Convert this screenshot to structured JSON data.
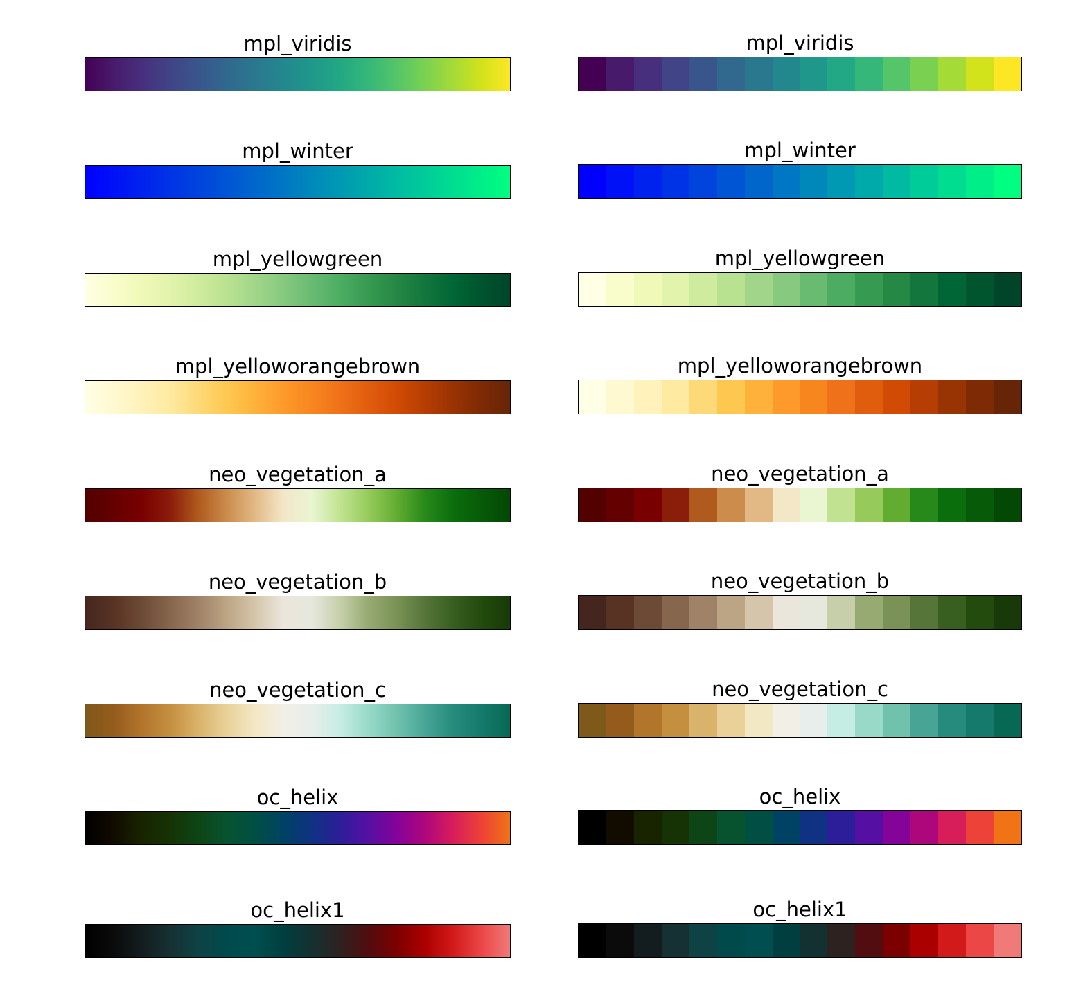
{
  "chart_data": {
    "type": "heatmap",
    "columns": [
      "continuous",
      "discrete"
    ],
    "colormaps": [
      {
        "name": "mpl_viridis",
        "discrete": [
          "#440154",
          "#481a6c",
          "#472f7d",
          "#414487",
          "#39568c",
          "#31688e",
          "#2a788e",
          "#23888e",
          "#1f988b",
          "#22a884",
          "#35b779",
          "#54c568",
          "#7ad151",
          "#a5db36",
          "#d2e21b",
          "#fde725"
        ]
      },
      {
        "name": "mpl_winter",
        "discrete": [
          "#0000ff",
          "#0011f7",
          "#0022ee",
          "#0033e6",
          "#0044dd",
          "#0055d5",
          "#0066cc",
          "#0077c4",
          "#0088bb",
          "#0099b3",
          "#00aaaa",
          "#00bba2",
          "#00cc99",
          "#00dd91",
          "#00ee88",
          "#00ff80"
        ]
      },
      {
        "name": "mpl_yellowgreen",
        "discrete": [
          "#ffffe5",
          "#f9fdcc",
          "#f0f9b7",
          "#e2f3ab",
          "#cfeb9e",
          "#b9e290",
          "#a1d68a",
          "#86c97f",
          "#69bb72",
          "#4cad62",
          "#379a51",
          "#258845",
          "#13763c",
          "#006635",
          "#00542e",
          "#004529"
        ]
      },
      {
        "name": "mpl_yelloworangebrown",
        "discrete": [
          "#ffffe5",
          "#fff9d1",
          "#fff2bb",
          "#feeaa0",
          "#fed977",
          "#fec850",
          "#feb23b",
          "#fd9a2b",
          "#f8861f",
          "#ef7119",
          "#e15d0e",
          "#d14b05",
          "#b63d03",
          "#983303",
          "#7e2a05",
          "#662506"
        ]
      },
      {
        "name": "neo_vegetation_a",
        "discrete": [
          "#530000",
          "#650000",
          "#790000",
          "#8b1d0b",
          "#b05a1e",
          "#cb8c4c",
          "#e2b985",
          "#f3e7c8",
          "#eaf5d1",
          "#c1e391",
          "#96cb5c",
          "#62ad31",
          "#27891a",
          "#0b6e0c",
          "#075a08",
          "#034804"
        ]
      },
      {
        "name": "neo_vegetation_b",
        "discrete": [
          "#45261e",
          "#583324",
          "#6d4a35",
          "#86664d",
          "#a08268",
          "#bca584",
          "#d5c6ab",
          "#ebe6dc",
          "#e6e8dd",
          "#c6cfaa",
          "#97aa72",
          "#7a9256",
          "#567539",
          "#385e20",
          "#234b0d",
          "#173a08"
        ]
      },
      {
        "name": "neo_vegetation_c",
        "discrete": [
          "#7d5a1a",
          "#955b1c",
          "#b1752c",
          "#c58f40",
          "#d9b36b",
          "#e9d199",
          "#f3e8c4",
          "#f1efe6",
          "#e8eeeb",
          "#c6ede3",
          "#98d9c8",
          "#71c2ad",
          "#48a596",
          "#268b7c",
          "#157a6b",
          "#076953"
        ]
      },
      {
        "name": "oc_helix",
        "discrete": [
          "#000000",
          "#110b00",
          "#182400",
          "#153305",
          "#0e4516",
          "#075330",
          "#004f43",
          "#004263",
          "#0f3282",
          "#2c1e99",
          "#5510a3",
          "#840399",
          "#ae077c",
          "#d81d5b",
          "#ed4237",
          "#f07316"
        ]
      },
      {
        "name": "oc_helix1",
        "discrete": [
          "#000000",
          "#0b0b0b",
          "#131d1f",
          "#163133",
          "#0e4244",
          "#004a4c",
          "#004e4f",
          "#003f3f",
          "#143131",
          "#2d2220",
          "#510d0f",
          "#7d0000",
          "#ab0000",
          "#d31a1a",
          "#eb4747",
          "#f07a78"
        ]
      }
    ]
  }
}
